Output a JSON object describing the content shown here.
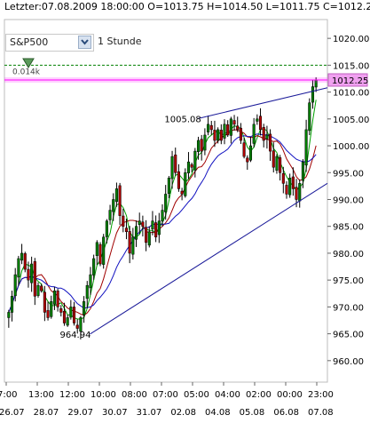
{
  "header": {
    "info": "Letzter:07.08.2009 18:00:00 O=1013.75 H=1014.50 L=1011.75 C=1012.25"
  },
  "toolbar": {
    "symbol": "S&P500",
    "interval": "1 Stunde"
  },
  "indicator_label": "0.014k",
  "price_tag": "1012.25",
  "colors": {
    "up": "#008000",
    "down": "#b00000",
    "ma_fast": "#00a000",
    "ma_mid": "#a00000",
    "ma_slow": "#1010c0",
    "trendline": "#1a1a99",
    "price_line": "#ff00ff",
    "dashed_line": "#008000",
    "tag_bg": "#f0a0f0"
  },
  "chart_data": {
    "type": "candlestick",
    "ylim": [
      956,
      1023.5
    ],
    "y_ticks": [
      960,
      965,
      970,
      975,
      980,
      985,
      990,
      995,
      1000,
      1005,
      1010,
      1015,
      1020
    ],
    "y_tick_labels": [
      "960.00",
      "965.00",
      "970.00",
      "975.00",
      "980.00",
      "985.00",
      "990.00",
      "995.00",
      "1000.00",
      "1005.00",
      "1010.00",
      "1015.00",
      "1020.00"
    ],
    "x_time_labels": [
      "7:00",
      "13:00",
      "12:00",
      "10:00",
      "08:00",
      "07:00",
      "05:00",
      "04:00",
      "02:00",
      "00:00",
      "23:00"
    ],
    "x_date_labels": [
      "26.07",
      "28.07",
      "29.07",
      "30.07",
      "31.07",
      "02.08",
      "04.08",
      "05.08",
      "06.08",
      "07.08"
    ],
    "current_price": 1012.25,
    "dashed_level": 1015.0,
    "annotations": [
      {
        "text": "964.94",
        "value": 964.94
      },
      {
        "text": "1005.08",
        "value": 1005.08
      }
    ],
    "trendlines": [
      {
        "from": [
          0.265,
          964.94
        ],
        "to": [
          1.0,
          993.0
        ]
      },
      {
        "from": [
          0.6,
          1005.08
        ],
        "to": [
          1.0,
          1010.8
        ]
      }
    ],
    "closes": [
      969,
      972,
      976,
      979,
      980,
      977,
      975,
      978,
      972,
      974,
      973,
      969,
      968,
      971,
      973,
      970,
      969,
      967,
      968,
      970,
      967,
      966,
      968,
      971,
      974,
      976,
      979,
      982,
      978,
      983,
      986,
      988,
      990,
      992,
      987,
      985,
      984,
      980,
      983,
      985,
      986,
      985,
      982,
      984,
      986,
      983,
      986,
      988,
      991,
      994,
      998,
      995,
      992,
      991,
      995,
      997,
      996,
      999,
      1001,
      999,
      1002,
      1004,
      1003,
      1001,
      1003,
      1001,
      1004,
      1002,
      1005,
      1004,
      1003,
      1001,
      998,
      997,
      1000,
      1004,
      1005,
      1003,
      1001,
      1002,
      999,
      996,
      998,
      995,
      993,
      991,
      994,
      992,
      990,
      993,
      997,
      1003,
      1008,
      1011,
      1012.25
    ]
  }
}
